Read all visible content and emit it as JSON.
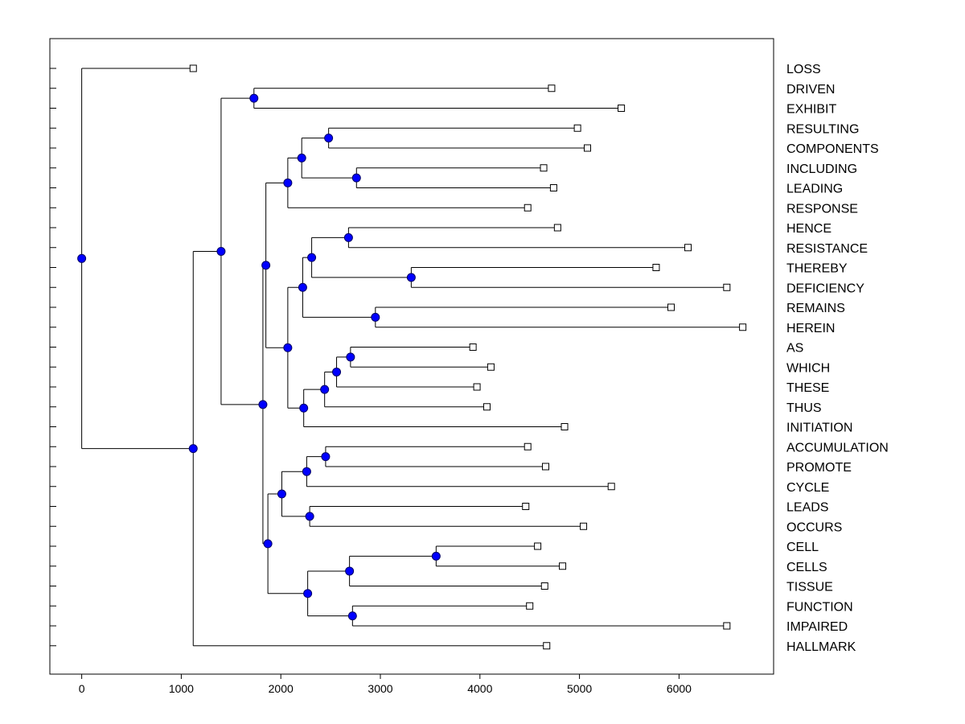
{
  "chart_data": {
    "type": "dendrogram",
    "title": "",
    "xlabel": "",
    "ylabel": "",
    "xlim": [
      -320,
      6950
    ],
    "x_ticks": [
      0,
      1000,
      2000,
      3000,
      4000,
      5000,
      6000
    ],
    "x_tick_labels": [
      "0",
      "1000",
      "2000",
      "3000",
      "4000",
      "5000",
      "6000"
    ],
    "grid": false,
    "colors": {
      "node_fill": "#0000ff",
      "node_stroke": "#000066",
      "leaf_fill": "#ffffff",
      "line": "#000000"
    },
    "leaves": [
      {
        "label": "LOSS",
        "x": 1120
      },
      {
        "label": "DRIVEN",
        "x": 4720
      },
      {
        "label": "EXHIBIT",
        "x": 5420
      },
      {
        "label": "RESULTING",
        "x": 4980
      },
      {
        "label": "COMPONENTS",
        "x": 5080
      },
      {
        "label": "INCLUDING",
        "x": 4640
      },
      {
        "label": "LEADING",
        "x": 4740
      },
      {
        "label": "RESPONSE",
        "x": 4480
      },
      {
        "label": "HENCE",
        "x": 4780
      },
      {
        "label": "RESISTANCE",
        "x": 6090
      },
      {
        "label": "THEREBY",
        "x": 5770
      },
      {
        "label": "DEFICIENCY",
        "x": 6480
      },
      {
        "label": "REMAINS",
        "x": 5920
      },
      {
        "label": "HEREIN",
        "x": 6640
      },
      {
        "label": "AS",
        "x": 3930
      },
      {
        "label": "WHICH",
        "x": 4110
      },
      {
        "label": "THESE",
        "x": 3970
      },
      {
        "label": "THUS",
        "x": 4070
      },
      {
        "label": "INITIATION",
        "x": 4850
      },
      {
        "label": "ACCUMULATION",
        "x": 4480
      },
      {
        "label": "PROMOTE",
        "x": 4660
      },
      {
        "label": "CYCLE",
        "x": 5320
      },
      {
        "label": "LEADS",
        "x": 4460
      },
      {
        "label": "OCCURS",
        "x": 5040
      },
      {
        "label": "CELL",
        "x": 4580
      },
      {
        "label": "CELLS",
        "x": 4830
      },
      {
        "label": "TISSUE",
        "x": 4650
      },
      {
        "label": "FUNCTION",
        "x": 4500
      },
      {
        "label": "IMPAIRED",
        "x": 6480
      },
      {
        "label": "HALLMARK",
        "x": 4670
      }
    ],
    "merges": [
      {
        "id": "n1",
        "x": 1730,
        "children": [
          "DRIVEN",
          "EXHIBIT"
        ]
      },
      {
        "id": "n2",
        "x": 2480,
        "children": [
          "RESULTING",
          "COMPONENTS"
        ]
      },
      {
        "id": "n3",
        "x": 2760,
        "children": [
          "INCLUDING",
          "LEADING"
        ]
      },
      {
        "id": "n4",
        "x": 2210,
        "children": [
          "n2",
          "n3"
        ]
      },
      {
        "id": "n5",
        "x": 2070,
        "children": [
          "n4",
          "RESPONSE"
        ]
      },
      {
        "id": "n6",
        "x": 2680,
        "children": [
          "HENCE",
          "RESISTANCE"
        ]
      },
      {
        "id": "n7",
        "x": 3310,
        "children": [
          "THEREBY",
          "DEFICIENCY"
        ]
      },
      {
        "id": "n8",
        "x": 2310,
        "children": [
          "n6",
          "n7"
        ]
      },
      {
        "id": "n9",
        "x": 2950,
        "children": [
          "REMAINS",
          "HEREIN"
        ]
      },
      {
        "id": "n10",
        "x": 2220,
        "children": [
          "n8",
          "n9"
        ]
      },
      {
        "id": "n11",
        "x": 2700,
        "children": [
          "AS",
          "WHICH"
        ]
      },
      {
        "id": "n12",
        "x": 2560,
        "children": [
          "n11",
          "THESE"
        ]
      },
      {
        "id": "n13",
        "x": 2440,
        "children": [
          "n12",
          "THUS"
        ]
      },
      {
        "id": "n14",
        "x": 2230,
        "children": [
          "n13",
          "INITIATION"
        ]
      },
      {
        "id": "n15",
        "x": 2070,
        "children": [
          "n10",
          "n14"
        ]
      },
      {
        "id": "n16",
        "x": 1850,
        "children": [
          "n5",
          "n15"
        ]
      },
      {
        "id": "n17",
        "x": 2450,
        "children": [
          "ACCUMULATION",
          "PROMOTE"
        ]
      },
      {
        "id": "n18",
        "x": 2260,
        "children": [
          "n17",
          "CYCLE"
        ]
      },
      {
        "id": "n19",
        "x": 2290,
        "children": [
          "LEADS",
          "OCCURS"
        ]
      },
      {
        "id": "n20",
        "x": 2010,
        "children": [
          "n18",
          "n19"
        ]
      },
      {
        "id": "n21",
        "x": 3560,
        "children": [
          "CELL",
          "CELLS"
        ]
      },
      {
        "id": "n22",
        "x": 2690,
        "children": [
          "n21",
          "TISSUE"
        ]
      },
      {
        "id": "n23",
        "x": 2720,
        "children": [
          "FUNCTION",
          "IMPAIRED"
        ]
      },
      {
        "id": "n24",
        "x": 2270,
        "children": [
          "n22",
          "n23"
        ]
      },
      {
        "id": "n25",
        "x": 1870,
        "children": [
          "n20",
          "n24"
        ]
      },
      {
        "id": "n26",
        "x": 1820,
        "children": [
          "n16",
          "n25"
        ]
      },
      {
        "id": "n27",
        "x": 1400,
        "children": [
          "n1",
          "n26"
        ]
      },
      {
        "id": "n28",
        "x": 1120,
        "children": [
          "n27",
          "HALLMARK"
        ]
      },
      {
        "id": "n29",
        "x": 0,
        "children": [
          "LOSS",
          "n28"
        ]
      }
    ]
  }
}
